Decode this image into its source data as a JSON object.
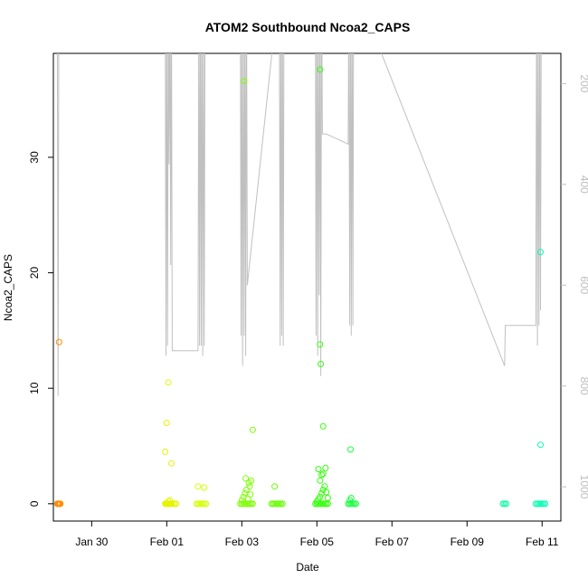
{
  "chart_data": {
    "type": "scatter",
    "title": "ATOM2 Southbound Ncoa2_CAPS",
    "xlabel": "Date",
    "ylabel": "Ncoa2_CAPS",
    "x_ticks": [
      "Jan 30",
      "Feb 01",
      "Feb 03",
      "Feb 05",
      "Feb 07",
      "Feb 09",
      "Feb 11"
    ],
    "y_ticks": [
      0,
      10,
      20,
      30
    ],
    "right_ticks": [
      200,
      400,
      600,
      800,
      1000
    ],
    "xlim": [
      "2023-01-28T23:30",
      "2023-02-11T12:00"
    ],
    "ylim": [
      -1.5,
      39
    ],
    "right_lim": [
      1068,
      140
    ],
    "right_axis_reversed": true,
    "grid": false,
    "series": [
      {
        "color": "#ff8c00",
        "points": [
          [
            "2023-01-29T02:00",
            0
          ],
          [
            "2023-01-29T02:10",
            0
          ],
          [
            "2023-01-29T02:20",
            0
          ],
          [
            "2023-01-29T02:30",
            0
          ],
          [
            "2023-01-29T02:40",
            0
          ],
          [
            "2023-01-29T02:50",
            0
          ],
          [
            "2023-01-29T03:00",
            0
          ],
          [
            "2023-01-29T03:10",
            0
          ],
          [
            "2023-01-29T03:30",
            0
          ],
          [
            "2023-01-29T04:00",
            0
          ],
          [
            "2023-01-29T03:10",
            14
          ]
        ]
      },
      {
        "color": "#e5f500",
        "points": [
          [
            "2023-01-31T23:00",
            0
          ],
          [
            "2023-01-31T23:30",
            0
          ],
          [
            "2023-02-01T00:00",
            0
          ],
          [
            "2023-02-01T00:30",
            0
          ],
          [
            "2023-02-01T01:00",
            0
          ],
          [
            "2023-02-01T01:30",
            0
          ],
          [
            "2023-02-01T02:00",
            0
          ],
          [
            "2023-02-01T02:30",
            0
          ],
          [
            "2023-02-01T03:00",
            0
          ],
          [
            "2023-02-01T04:00",
            0
          ],
          [
            "2023-02-01T05:00",
            0
          ],
          [
            "2023-02-01T06:00",
            0
          ],
          [
            "2023-02-01T01:00",
            10.5
          ],
          [
            "2023-02-01T00:00",
            7
          ],
          [
            "2023-01-31T23:00",
            4.5
          ],
          [
            "2023-02-01T03:00",
            3.5
          ],
          [
            "2023-02-01T01:00",
            0.2
          ],
          [
            "2023-02-01T02:00",
            0.3
          ]
        ]
      },
      {
        "color": "#d4ff00",
        "points": [
          [
            "2023-02-01T19:00",
            0
          ],
          [
            "2023-02-01T20:00",
            0
          ],
          [
            "2023-02-01T21:00",
            0
          ],
          [
            "2023-02-01T22:00",
            0
          ],
          [
            "2023-02-01T23:00",
            0
          ],
          [
            "2023-02-02T00:00",
            0
          ],
          [
            "2023-02-02T01:00",
            0
          ],
          [
            "2023-02-01T20:00",
            1.5
          ],
          [
            "2023-02-02T00:00",
            1.4
          ]
        ]
      },
      {
        "color": "#7cff00",
        "points": [
          [
            "2023-02-02T23:00",
            0
          ],
          [
            "2023-02-03T00:00",
            0
          ],
          [
            "2023-02-03T01:00",
            0
          ],
          [
            "2023-02-03T02:00",
            0
          ],
          [
            "2023-02-03T03:00",
            0
          ],
          [
            "2023-02-03T04:00",
            0
          ],
          [
            "2023-02-03T05:00",
            0
          ],
          [
            "2023-02-03T06:00",
            0
          ],
          [
            "2023-02-03T07:00",
            0
          ],
          [
            "2023-02-03T00:00",
            0.3
          ],
          [
            "2023-02-03T01:00",
            0.6
          ],
          [
            "2023-02-03T02:00",
            0.9
          ],
          [
            "2023-02-03T03:00",
            1.2
          ],
          [
            "2023-02-03T04:00",
            0.4
          ],
          [
            "2023-02-03T05:00",
            1.5
          ],
          [
            "2023-02-03T06:00",
            2.0
          ],
          [
            "2023-02-03T02:30",
            2.2
          ],
          [
            "2023-02-03T04:30",
            1.8
          ],
          [
            "2023-02-03T05:30",
            0.8
          ],
          [
            "2023-02-03T01:30",
            36.6
          ],
          [
            "2023-02-03T07:00",
            6.4
          ]
        ]
      },
      {
        "color": "#66ff00",
        "points": [
          [
            "2023-02-03T19:00",
            0
          ],
          [
            "2023-02-03T20:00",
            0
          ],
          [
            "2023-02-03T21:00",
            0
          ],
          [
            "2023-02-03T22:00",
            0
          ],
          [
            "2023-02-03T23:00",
            0
          ],
          [
            "2023-02-04T00:00",
            0
          ],
          [
            "2023-02-04T01:00",
            0
          ],
          [
            "2023-02-04T02:00",
            0
          ],
          [
            "2023-02-03T21:00",
            1.5
          ]
        ]
      },
      {
        "color": "#33ff0a",
        "points": [
          [
            "2023-02-04T23:00",
            0
          ],
          [
            "2023-02-05T00:00",
            0
          ],
          [
            "2023-02-05T01:00",
            0
          ],
          [
            "2023-02-05T02:00",
            0
          ],
          [
            "2023-02-05T03:00",
            0
          ],
          [
            "2023-02-05T04:00",
            0
          ],
          [
            "2023-02-05T05:00",
            0
          ],
          [
            "2023-02-05T06:00",
            0
          ],
          [
            "2023-02-05T07:00",
            0
          ],
          [
            "2023-02-05T00:00",
            0.2
          ],
          [
            "2023-02-05T01:00",
            0.4
          ],
          [
            "2023-02-05T02:00",
            0.6
          ],
          [
            "2023-02-05T03:00",
            0.9
          ],
          [
            "2023-02-05T04:00",
            1.2
          ],
          [
            "2023-02-05T05:00",
            1.5
          ],
          [
            "2023-02-05T02:00",
            2.0
          ],
          [
            "2023-02-05T03:00",
            2.5
          ],
          [
            "2023-02-05T01:00",
            3.0
          ],
          [
            "2023-02-05T06:00",
            1.0
          ],
          [
            "2023-02-05T07:00",
            0.5
          ],
          [
            "2023-02-05T05:30",
            3.1
          ],
          [
            "2023-02-05T04:00",
            2.6
          ],
          [
            "2023-02-05T02:00",
            37.6
          ],
          [
            "2023-02-05T02:00",
            13.8
          ],
          [
            "2023-02-05T02:30",
            12.1
          ],
          [
            "2023-02-05T04:00",
            6.7
          ]
        ]
      },
      {
        "color": "#1aff40",
        "points": [
          [
            "2023-02-05T20:00",
            0
          ],
          [
            "2023-02-05T21:00",
            0
          ],
          [
            "2023-02-05T22:00",
            0
          ],
          [
            "2023-02-05T23:00",
            0
          ],
          [
            "2023-02-06T00:00",
            0
          ],
          [
            "2023-02-06T01:00",
            0
          ],
          [
            "2023-02-05T21:00",
            0.3
          ],
          [
            "2023-02-05T22:00",
            0.5
          ],
          [
            "2023-02-05T21:30",
            4.7
          ]
        ]
      },
      {
        "color": "#00ff9f",
        "points": [
          [
            "2023-02-09T23:00",
            0
          ],
          [
            "2023-02-10T00:00",
            0
          ],
          [
            "2023-02-10T01:00",
            0
          ]
        ]
      },
      {
        "color": "#00ffb0",
        "points": [
          [
            "2023-02-10T20:00",
            0
          ],
          [
            "2023-02-10T21:00",
            0
          ],
          [
            "2023-02-10T22:00",
            0
          ],
          [
            "2023-02-10T23:00",
            0
          ],
          [
            "2023-02-11T00:00",
            0
          ],
          [
            "2023-02-11T01:00",
            0
          ],
          [
            "2023-02-11T02:00",
            0
          ],
          [
            "2023-02-10T23:00",
            21.8
          ],
          [
            "2023-02-10T23:00",
            5.1
          ]
        ]
      }
    ],
    "depth_track": {
      "color": "#c0c0c0",
      "points": [
        [
          "2023-01-29T02:00",
          0
        ],
        [
          "2023-01-29T02:30",
          820
        ],
        [
          "2023-01-29T03:00",
          0
        ],
        [
          "2023-01-31T23:00",
          0
        ],
        [
          "2023-01-31T23:30",
          740
        ],
        [
          "2023-02-01T00:00",
          0
        ],
        [
          "2023-02-01T00:30",
          720
        ],
        [
          "2023-02-01T01:00",
          0
        ],
        [
          "2023-02-01T01:30",
          360
        ],
        [
          "2023-02-01T02:00",
          0
        ],
        [
          "2023-02-01T02:30",
          560
        ],
        [
          "2023-02-01T03:00",
          0
        ],
        [
          "2023-02-01T03:30",
          730
        ],
        [
          "2023-02-01T20:00",
          730
        ],
        [
          "2023-02-01T20:30",
          0
        ],
        [
          "2023-02-01T21:00",
          720
        ],
        [
          "2023-02-01T21:30",
          0
        ],
        [
          "2023-02-01T22:00",
          720
        ],
        [
          "2023-02-01T22:30",
          0
        ],
        [
          "2023-02-01T23:00",
          740
        ],
        [
          "2023-02-01T23:30",
          0
        ],
        [
          "2023-02-02T00:00",
          720
        ],
        [
          "2023-02-02T00:30",
          0
        ],
        [
          "2023-02-02T23:00",
          0
        ],
        [
          "2023-02-02T23:30",
          700
        ],
        [
          "2023-02-03T00:00",
          0
        ],
        [
          "2023-02-03T00:30",
          760
        ],
        [
          "2023-02-03T01:00",
          0
        ],
        [
          "2023-02-03T01:30",
          700
        ],
        [
          "2023-02-03T02:00",
          0
        ],
        [
          "2023-02-03T02:30",
          740
        ],
        [
          "2023-02-03T03:00",
          0
        ],
        [
          "2023-02-03T03:30",
          600
        ],
        [
          "2023-02-04T00:00",
          0
        ],
        [
          "2023-02-04T00:30",
          720
        ],
        [
          "2023-02-04T01:00",
          0
        ],
        [
          "2023-02-04T01:30",
          700
        ],
        [
          "2023-02-04T02:00",
          0
        ],
        [
          "2023-02-04T02:30",
          720
        ],
        [
          "2023-02-04T03:00",
          0
        ],
        [
          "2023-02-04T23:00",
          0
        ],
        [
          "2023-02-04T23:30",
          700
        ],
        [
          "2023-02-05T00:00",
          0
        ],
        [
          "2023-02-05T00:30",
          740
        ],
        [
          "2023-02-05T01:00",
          0
        ],
        [
          "2023-02-05T01:30",
          620
        ],
        [
          "2023-02-05T02:00",
          0
        ],
        [
          "2023-02-05T02:30",
          780
        ],
        [
          "2023-02-05T03:00",
          0
        ],
        [
          "2023-02-05T03:30",
          300
        ],
        [
          "2023-02-05T06:00",
          300
        ],
        [
          "2023-02-05T20:00",
          320
        ],
        [
          "2023-02-05T20:30",
          0
        ],
        [
          "2023-02-05T21:00",
          680
        ],
        [
          "2023-02-05T21:30",
          0
        ],
        [
          "2023-02-05T22:00",
          700
        ],
        [
          "2023-02-05T22:30",
          0
        ],
        [
          "2023-02-05T23:00",
          680
        ],
        [
          "2023-02-05T23:30",
          0
        ],
        [
          "2023-02-10T00:00",
          760
        ],
        [
          "2023-02-10T00:30",
          680
        ],
        [
          "2023-02-10T20:00",
          680
        ],
        [
          "2023-02-10T20:30",
          0
        ],
        [
          "2023-02-10T21:00",
          720
        ],
        [
          "2023-02-10T21:30",
          0
        ],
        [
          "2023-02-10T22:00",
          680
        ],
        [
          "2023-02-10T22:30",
          0
        ],
        [
          "2023-02-10T23:00",
          650
        ],
        [
          "2023-02-10T23:30",
          0
        ]
      ]
    }
  }
}
